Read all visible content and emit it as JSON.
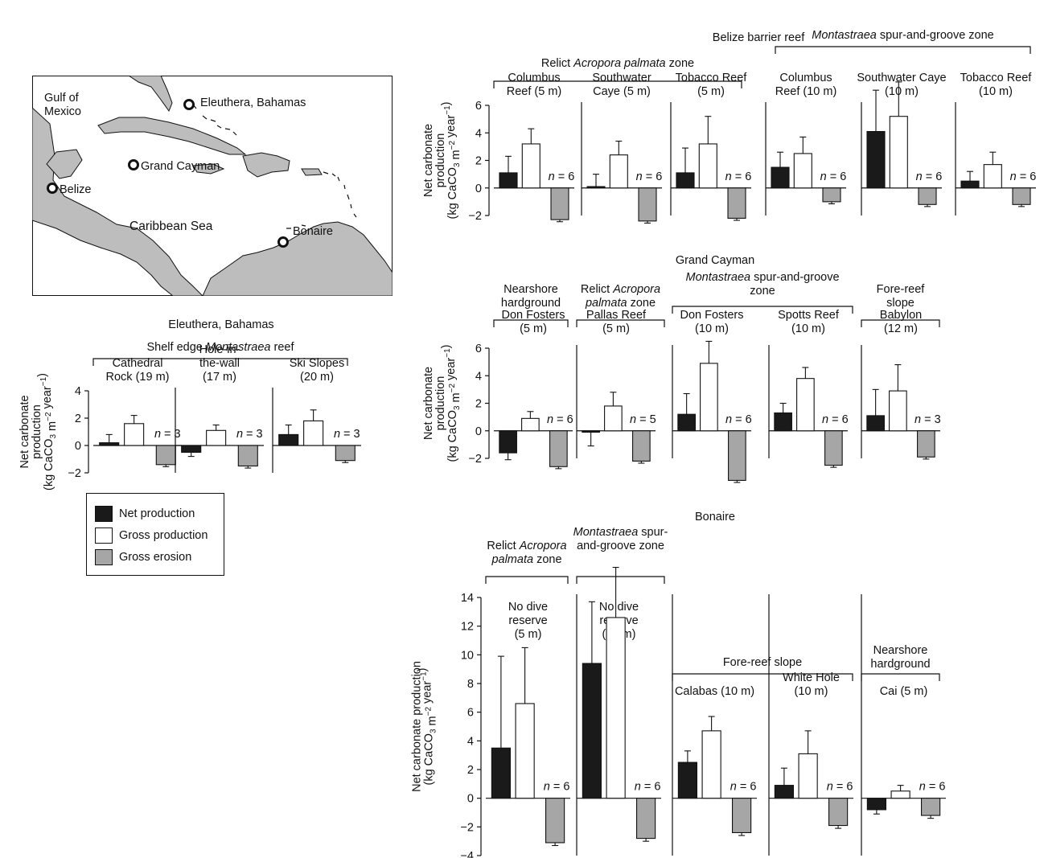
{
  "colors": {
    "net": "#1a1a1a",
    "gross_production": "#ffffff",
    "gross_erosion": "#a6a6a6",
    "axis": "#111111"
  },
  "map": {
    "labels": [
      {
        "text": "Gulf of",
        "id": "gulf-1"
      },
      {
        "text": "Mexico",
        "id": "gulf-2"
      },
      {
        "text": "Eleuthera, Bahamas",
        "id": "eleuthera"
      },
      {
        "text": "Grand Cayman",
        "id": "cayman"
      },
      {
        "text": "Belize",
        "id": "belize"
      },
      {
        "text": "Caribbean Sea",
        "id": "sea"
      },
      {
        "text": "Bonaire",
        "id": "bonaire"
      }
    ]
  },
  "legend": {
    "items": [
      {
        "label": "Net production",
        "key": "net"
      },
      {
        "label": "Gross production",
        "key": "gross_production"
      },
      {
        "label": "Gross erosion",
        "key": "gross_erosion"
      }
    ]
  },
  "chart_data": [
    {
      "type": "bar",
      "title": "Belize barrier reef",
      "ylabel_lines": [
        "Net carbonate",
        "production",
        "(kg CaCO3 m-2 year-1)"
      ],
      "ylim": [
        -2,
        6
      ],
      "yticks": [
        -2,
        0,
        2,
        4,
        6
      ],
      "series_names": [
        "Net production",
        "Gross production",
        "Gross erosion"
      ],
      "groups": [
        {
          "label": "Relict Acropora palmata zone",
          "label_parts": [
            [
              "Relict ",
              false
            ],
            [
              "Acropora palmata",
              true
            ],
            [
              " zone",
              false
            ]
          ]
        },
        {
          "label": "Montastraea spur-and-groove zone",
          "label_parts": [
            [
              "Montastraea",
              true
            ],
            [
              " spur-and-groove  zone",
              false
            ]
          ]
        }
      ],
      "sites": [
        {
          "name_lines": [
            "Columbus",
            "Reef (5 m)"
          ],
          "n": "n = 6",
          "values": [
            1.1,
            3.2,
            -2.3
          ],
          "errors": [
            1.2,
            1.1,
            0.15
          ]
        },
        {
          "name_lines": [
            "Southwater",
            "Caye (5 m)"
          ],
          "n": "n = 6",
          "values": [
            0.1,
            2.4,
            -2.4
          ],
          "errors": [
            0.9,
            1.0,
            0.15
          ]
        },
        {
          "name_lines": [
            "Tobacco Reef",
            "(5 m)"
          ],
          "n": "n = 6",
          "values": [
            1.1,
            3.2,
            -2.2
          ],
          "errors": [
            1.8,
            2.0,
            0.15
          ]
        },
        {
          "name_lines": [
            "Columbus",
            "Reef (10 m)"
          ],
          "n": "n = 6",
          "values": [
            1.5,
            2.5,
            -1.0
          ],
          "errors": [
            1.1,
            1.2,
            0.15
          ]
        },
        {
          "name_lines": [
            "Southwater Caye",
            "(10 m)"
          ],
          "n": "n = 6",
          "values": [
            4.1,
            5.2,
            -1.2
          ],
          "errors": [
            3.0,
            2.5,
            0.15
          ]
        },
        {
          "name_lines": [
            "Tobacco Reef",
            "(10 m)"
          ],
          "n": "n = 6",
          "values": [
            0.5,
            1.7,
            -1.2
          ],
          "errors": [
            0.7,
            0.9,
            0.15
          ]
        }
      ]
    },
    {
      "type": "bar",
      "title": "Grand Cayman",
      "ylabel_lines": [
        "Net carbonate",
        "production",
        "(kg CaCO3 m-2 year-1)"
      ],
      "ylim": [
        -2,
        6
      ],
      "yticks": [
        -2,
        0,
        2,
        4,
        6
      ],
      "series_names": [
        "Net production",
        "Gross production",
        "Gross erosion"
      ],
      "groups": [
        {
          "label": "Nearshore hardground",
          "label_parts": [
            [
              "Nearshore",
              false
            ],
            [
              "|hardground",
              false
            ]
          ]
        },
        {
          "label": "Relict Acropora palmata zone",
          "label_parts": [
            [
              "Relict ",
              false
            ],
            [
              "Acropora",
              true
            ],
            [
              "|palmata",
              true
            ],
            [
              " zone",
              false
            ]
          ]
        },
        {
          "label": "Montastraea spur-and-groove zone",
          "label_parts": [
            [
              "Montastraea",
              true
            ],
            [
              " spur-and-groove",
              false
            ],
            [
              "|zone",
              false
            ]
          ]
        },
        {
          "label": "Fore-reef slope",
          "label_parts": [
            [
              "Fore-reef",
              false
            ],
            [
              "|slope",
              false
            ]
          ]
        }
      ],
      "sites": [
        {
          "name_lines": [
            "Don Fosters",
            "(5 m)"
          ],
          "n": "n = 6",
          "values": [
            -1.6,
            0.9,
            -2.6
          ],
          "errors": [
            0.5,
            0.5,
            0.15
          ]
        },
        {
          "name_lines": [
            "Pallas Reef",
            "(5 m)"
          ],
          "n": "n = 5",
          "values": [
            -0.1,
            1.8,
            -2.2
          ],
          "errors": [
            1.0,
            1.0,
            0.15
          ]
        },
        {
          "name_lines": [
            "Don Fosters",
            "(10 m)"
          ],
          "n": "n = 6",
          "values": [
            1.2,
            4.9,
            -3.6
          ],
          "errors": [
            1.5,
            1.6,
            0.15
          ]
        },
        {
          "name_lines": [
            "Spotts Reef",
            "(10 m)"
          ],
          "n": "n = 6",
          "values": [
            1.3,
            3.8,
            -2.5
          ],
          "errors": [
            0.7,
            0.8,
            0.15
          ]
        },
        {
          "name_lines": [
            "Babylon",
            "(12 m)"
          ],
          "n": "n = 3",
          "values": [
            1.1,
            2.9,
            -1.9
          ],
          "errors": [
            1.9,
            1.9,
            0.15
          ]
        }
      ]
    },
    {
      "type": "bar",
      "title": "Eleuthera, Bahamas",
      "ylabel_lines": [
        "Net carbonate",
        "production",
        "(kg CaCO3 m-2 year-1)"
      ],
      "ylim": [
        -2,
        4
      ],
      "yticks": [
        -2,
        0,
        2,
        4
      ],
      "series_names": [
        "Net production",
        "Gross production",
        "Gross erosion"
      ],
      "groups": [
        {
          "label": "Shelf edge Montastraea reef",
          "label_parts": [
            [
              "Shelf edge ",
              false
            ],
            [
              "Montastraea",
              true
            ],
            [
              " reef",
              false
            ]
          ]
        }
      ],
      "sites": [
        {
          "name_lines": [
            "Cathedral",
            "Rock (19 m)"
          ],
          "n": "n = 3",
          "values": [
            0.2,
            1.6,
            -1.4
          ],
          "errors": [
            0.6,
            0.6,
            0.15
          ]
        },
        {
          "name_lines": [
            "Hole-in-",
            "the-wall",
            "(17 m)"
          ],
          "n": "n = 3",
          "values": [
            -0.5,
            1.1,
            -1.5
          ],
          "errors": [
            0.3,
            0.4,
            0.15
          ]
        },
        {
          "name_lines": [
            "Ski Slopes",
            "(20 m)"
          ],
          "n": "n = 3",
          "values": [
            0.8,
            1.8,
            -1.1
          ],
          "errors": [
            0.7,
            0.8,
            0.15
          ]
        }
      ]
    },
    {
      "type": "bar",
      "title": "Bonaire",
      "ylabel_lines": [
        "Net carbonate production",
        "(kg CaCO3 m-2 year-1)"
      ],
      "ylim": [
        -4,
        14
      ],
      "yticks": [
        -4,
        -2,
        0,
        2,
        4,
        6,
        8,
        10,
        12,
        14
      ],
      "series_names": [
        "Net production",
        "Gross production",
        "Gross erosion"
      ],
      "groups": [
        {
          "label": "Relict Acropora palmata zone",
          "label_parts": [
            [
              "Relict ",
              false
            ],
            [
              "Acropora",
              true
            ],
            [
              "|palmata",
              true
            ],
            [
              " zone",
              false
            ]
          ]
        },
        {
          "label": "Montastraea spur-and-groove zone",
          "label_parts": [
            [
              "Montastraea",
              true
            ],
            [
              " spur-",
              false
            ],
            [
              "|and-groove  zone",
              false
            ]
          ]
        },
        {
          "label": "Fore-reef slope",
          "label_parts": [
            [
              "Fore-reef slope",
              false
            ]
          ]
        },
        {
          "label": "Nearshore hardground",
          "label_parts": [
            [
              "Nearshore",
              false
            ],
            [
              "|hardground",
              false
            ]
          ]
        }
      ],
      "sites": [
        {
          "name_lines": [
            "No dive",
            "reserve",
            "(5 m)"
          ],
          "n": "n = 6",
          "values": [
            3.5,
            6.6,
            -3.1
          ],
          "errors": [
            6.4,
            3.9,
            0.2
          ]
        },
        {
          "name_lines": [
            "No dive",
            "reserve",
            "(10 m)"
          ],
          "n": "n = 6",
          "values": [
            9.4,
            12.6,
            -2.8
          ],
          "errors": [
            4.3,
            3.5,
            0.2
          ]
        },
        {
          "name_lines": [
            "Calabas (10 m)"
          ],
          "n": "n = 6",
          "values": [
            2.5,
            4.7,
            -2.4
          ],
          "errors": [
            0.8,
            1.0,
            0.2
          ]
        },
        {
          "name_lines": [
            "White Hole",
            "(10 m)"
          ],
          "n": "n = 6",
          "values": [
            0.9,
            3.1,
            -1.9
          ],
          "errors": [
            1.2,
            1.6,
            0.2
          ]
        },
        {
          "name_lines": [
            "Cai (5 m)"
          ],
          "n": "n = 6",
          "values": [
            -0.8,
            0.5,
            -1.2
          ],
          "errors": [
            0.3,
            0.4,
            0.2
          ]
        }
      ]
    }
  ]
}
